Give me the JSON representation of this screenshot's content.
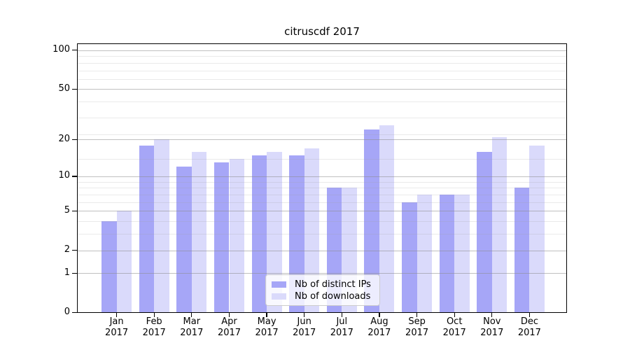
{
  "chart_data": {
    "type": "bar",
    "title": "citruscdf 2017",
    "x_tick_months": [
      "Jan",
      "Feb",
      "Mar",
      "Apr",
      "May",
      "Jun",
      "Jul",
      "Aug",
      "Sep",
      "Oct",
      "Nov",
      "Dec"
    ],
    "x_tick_year": "2017",
    "series": [
      {
        "name": "Nb of distinct IPs",
        "color": "#a6a6f7",
        "values": [
          4,
          18,
          12,
          13,
          15,
          15,
          8,
          24,
          6,
          7,
          16,
          8
        ]
      },
      {
        "name": "Nb of downloads",
        "color": "#dadafb",
        "values": [
          5,
          20,
          16,
          14,
          16,
          17,
          8,
          26,
          7,
          7,
          21,
          18
        ]
      }
    ],
    "y_scale": "log10(1+y)",
    "y_major_ticks": [
      0,
      1,
      2,
      5,
      10,
      20,
      50,
      100
    ],
    "y_minor_ticks": [
      3,
      4,
      6,
      7,
      8,
      9,
      14,
      22,
      30,
      40,
      60,
      70,
      80,
      90
    ],
    "ylim": [
      0,
      112
    ],
    "grid": "horizontal, major and minor, drawn over bars",
    "legend": {
      "position": "lower center",
      "entries": [
        "Nb of distinct IPs",
        "Nb of downloads"
      ]
    }
  }
}
